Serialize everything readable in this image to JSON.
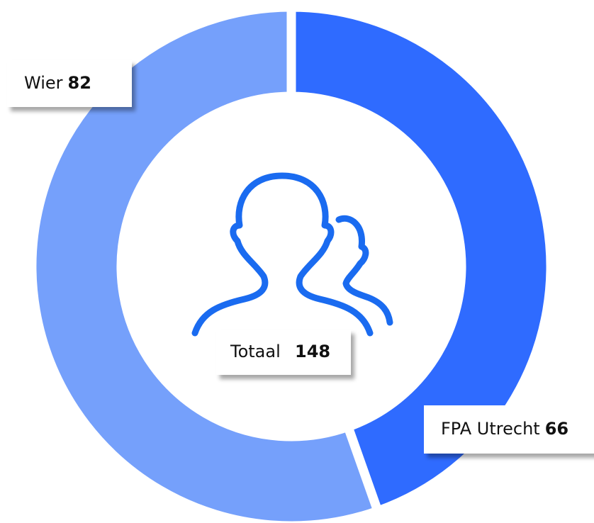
{
  "chart_data": {
    "type": "pie",
    "categories": [
      "FPA Utrecht",
      "Wier"
    ],
    "values": [
      66,
      82
    ],
    "colors": [
      "#2f6bff",
      "#75a0fb"
    ],
    "total_label": "Totaal",
    "total": 148
  }
}
